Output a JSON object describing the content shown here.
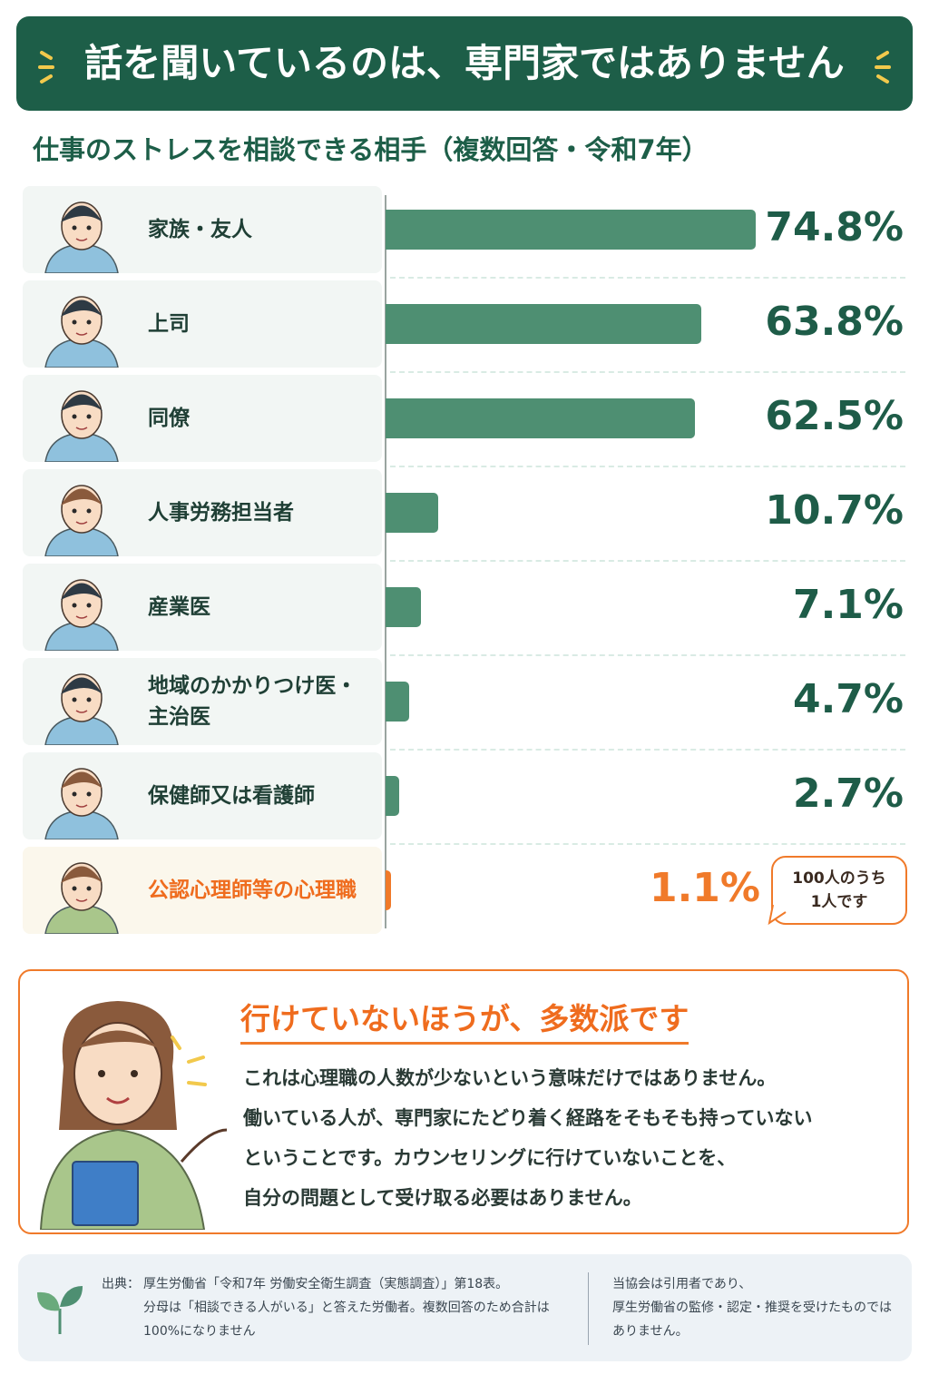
{
  "chart_data": {
    "type": "bar",
    "orientation": "horizontal",
    "title": "話を聞いているのは、専門家ではありません",
    "subtitle": "仕事のストレスを相談できる相手（複数回答・令和7年）",
    "categories": [
      "家族・友人",
      "上司",
      "同僚",
      "人事労務担当者",
      "産業医",
      "地域のかかりつけ医・主治医",
      "保健師又は看護師",
      "公認心理師等の心理職"
    ],
    "values": [
      74.8,
      63.8,
      62.5,
      10.7,
      7.1,
      4.7,
      2.7,
      1.1
    ],
    "value_labels": [
      "74.8%",
      "63.8%",
      "62.5%",
      "10.7%",
      "7.1%",
      "4.7%",
      "2.7%",
      "1.1%"
    ],
    "colors": [
      "#4e8f72",
      "#4e8f72",
      "#4e8f72",
      "#4e8f72",
      "#4e8f72",
      "#4e8f72",
      "#4e8f72",
      "#f07a2a"
    ],
    "annotation": [
      "100人のうち",
      "1人です"
    ]
  },
  "callout": {
    "title": "行けていないほうが、多数派です",
    "lines": [
      "これは心理職の人数が少ないという意味だけではありません。",
      "働いている人が、専門家にたどり着く経路をそもそも持っていない",
      "ということです。カウンセリングに行けていないことを、",
      "自分の問題として受け取る必要はありません。"
    ]
  },
  "footer": {
    "source_label": "出典：",
    "source_lines": [
      "厚生労働省「令和7年 労働安全衛生調査（実態調査）」第18表。",
      "分母は「相談できる人がいる」と答えた労働者。複数回答のため合計は",
      "100%になりません"
    ],
    "disclaimer_lines": [
      "当協会は引用者であり、",
      "厚生労働省の監修・認定・推奨を受けたものでは",
      "ありません。"
    ]
  }
}
